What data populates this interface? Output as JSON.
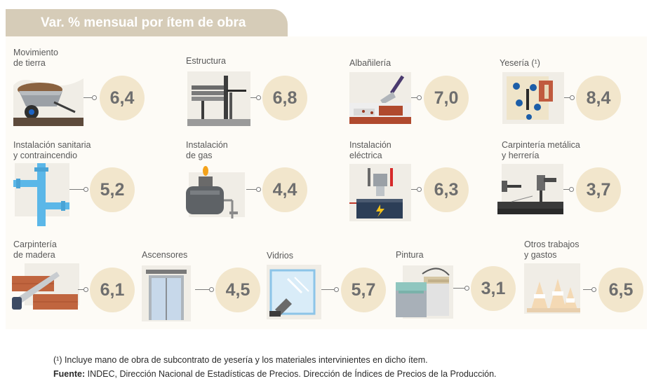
{
  "header": {
    "title": "Var. % mensual por ítem de obra"
  },
  "items": [
    {
      "label": [
        "Movimiento",
        "de tierra"
      ],
      "value": "6,4",
      "icon": "wheelbarrow-icon"
    },
    {
      "label": [
        "Estructura"
      ],
      "value": "6,8",
      "icon": "steel-beams-icon"
    },
    {
      "label": [
        "Albañilería"
      ],
      "value": "7,0",
      "icon": "trowel-bricks-icon"
    },
    {
      "label": [
        "Yesería (¹)"
      ],
      "value": "8,4",
      "icon": "plaster-wall-icon"
    },
    {
      "label": [
        "Instalación sanitaria",
        "y contraincendio"
      ],
      "value": "5,2",
      "icon": "pipes-icon"
    },
    {
      "label": [
        "Instalación",
        "de gas"
      ],
      "value": "4,4",
      "icon": "gas-tank-icon"
    },
    {
      "label": [
        "Instalación",
        "eléctrica"
      ],
      "value": "6,3",
      "icon": "battery-icon"
    },
    {
      "label": [
        "Carpintería metálica",
        "y herrería"
      ],
      "value": "3,7",
      "icon": "drill-hammer-icon"
    },
    {
      "label": [
        "Carpintería",
        "de madera"
      ],
      "value": "6,1",
      "icon": "saw-wood-icon"
    },
    {
      "label": [
        "Ascensores"
      ],
      "value": "4,5",
      "icon": "elevator-icon"
    },
    {
      "label": [
        "Vidrios"
      ],
      "value": "5,7",
      "icon": "glass-window-icon"
    },
    {
      "label": [
        "Pintura"
      ],
      "value": "3,1",
      "icon": "paint-bucket-icon"
    },
    {
      "label": [
        "Otros trabajos",
        "y gastos"
      ],
      "value": "6,5",
      "icon": "traffic-cones-icon"
    }
  ],
  "footnote": "(¹) Incluye mano de obra de subcontrato de yesería y los materiales intervinientes en dicho ítem.",
  "source": {
    "label": "Fuente:",
    "text": " INDEC, Dirección Nacional de Estadísticas de Precios. Dirección de Índices de Precios de la Producción."
  },
  "colors": {
    "bubble": "#f2e6cc",
    "header": "#d6ccb8",
    "panel": "#fdfbf6"
  }
}
